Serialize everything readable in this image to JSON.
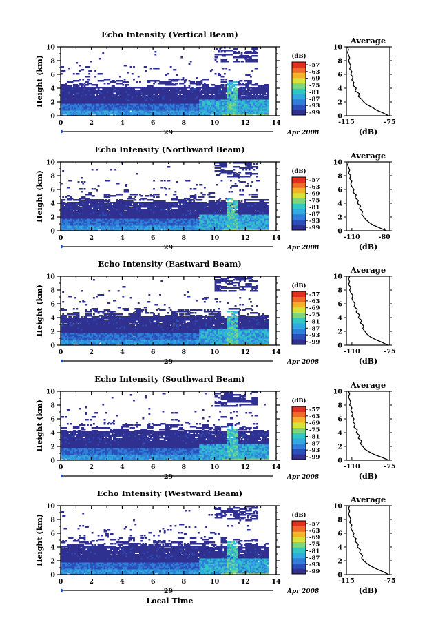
{
  "chart_data": [
    {
      "type": "heatmap",
      "title": "Echo Intensity (Vertical Beam)",
      "ylabel": "Height (km)",
      "xticks": [
        "0",
        "2",
        "4",
        "6",
        "8",
        "10",
        "12",
        "14"
      ],
      "yticks": [
        "0",
        "2",
        "4",
        "6",
        "8",
        "10"
      ],
      "xlim": [
        0,
        14
      ],
      "ylim": [
        0,
        10
      ],
      "data_end_hour": 13.5,
      "date_day": "29",
      "date_label": "Apr 2008",
      "colorbar": {
        "unit": "(dB)",
        "labels": [
          "-57",
          "-63",
          "-69",
          "-75",
          "-81",
          "-87",
          "-93",
          "-99"
        ]
      },
      "average": {
        "title": "Average",
        "xlabel": "(dB)",
        "xticks": [
          "-115",
          "-75"
        ],
        "xlim": [
          -115,
          -75
        ],
        "yticks": [
          "0",
          "2",
          "4",
          "6",
          "8",
          "10"
        ],
        "ylim": [
          0,
          10
        ],
        "profile": [
          [
            0,
            -76
          ],
          [
            0.4,
            -81
          ],
          [
            0.8,
            -87
          ],
          [
            1.2,
            -91
          ],
          [
            1.6,
            -96
          ],
          [
            2.0,
            -99
          ],
          [
            2.4,
            -101
          ],
          [
            2.8,
            -104
          ],
          [
            3.2,
            -103
          ],
          [
            3.6,
            -107
          ],
          [
            4.0,
            -106
          ],
          [
            4.4,
            -109
          ],
          [
            4.8,
            -108
          ],
          [
            5.2,
            -110
          ],
          [
            5.6,
            -109
          ],
          [
            6.0,
            -111
          ],
          [
            6.4,
            -110
          ],
          [
            6.8,
            -112
          ],
          [
            7.2,
            -111
          ],
          [
            7.6,
            -112
          ],
          [
            8.0,
            -113
          ],
          [
            8.4,
            -112
          ],
          [
            8.8,
            -113
          ],
          [
            9.2,
            -114
          ],
          [
            9.6,
            -113
          ],
          [
            10,
            -114
          ]
        ]
      },
      "color": "#223399"
    },
    {
      "type": "heatmap",
      "title": "Echo Intensity (Northward Beam)",
      "ylabel": "Height (km)",
      "xticks": [
        "0",
        "2",
        "4",
        "6",
        "8",
        "10",
        "12",
        "14"
      ],
      "yticks": [
        "0",
        "2",
        "4",
        "6",
        "8",
        "10"
      ],
      "xlim": [
        0,
        14
      ],
      "ylim": [
        0,
        10
      ],
      "data_end_hour": 13.5,
      "date_day": "29",
      "date_label": "Apr 2008",
      "colorbar": {
        "unit": "(dB)",
        "labels": [
          "-57",
          "-63",
          "-69",
          "-75",
          "-81",
          "-87",
          "-93",
          "-99"
        ]
      },
      "average": {
        "title": "Average",
        "xlabel": "(dB)",
        "xticks": [
          "-110",
          "-80"
        ],
        "xlim": [
          -115,
          -75
        ],
        "yticks": [
          "0",
          "2",
          "4",
          "6",
          "8",
          "10"
        ],
        "ylim": [
          0,
          10
        ],
        "profile": [
          [
            0,
            -78
          ],
          [
            0.4,
            -84
          ],
          [
            0.8,
            -90
          ],
          [
            1.2,
            -94
          ],
          [
            1.6,
            -97
          ],
          [
            2.0,
            -99
          ],
          [
            2.4,
            -101
          ],
          [
            2.8,
            -100
          ],
          [
            3.2,
            -103
          ],
          [
            3.6,
            -102
          ],
          [
            4.0,
            -105
          ],
          [
            4.4,
            -104
          ],
          [
            4.8,
            -107
          ],
          [
            5.2,
            -106
          ],
          [
            5.6,
            -109
          ],
          [
            6.0,
            -108
          ],
          [
            6.4,
            -110
          ],
          [
            6.8,
            -111
          ],
          [
            7.2,
            -110
          ],
          [
            7.6,
            -112
          ],
          [
            8.0,
            -111
          ],
          [
            8.4,
            -113
          ],
          [
            8.8,
            -112
          ],
          [
            9.2,
            -113
          ],
          [
            9.6,
            -114
          ],
          [
            10,
            -113
          ]
        ]
      },
      "color": "#223399"
    },
    {
      "type": "heatmap",
      "title": "Echo Intensity (Eastward Beam)",
      "ylabel": "Height (km)",
      "xticks": [
        "0",
        "2",
        "4",
        "6",
        "8",
        "10",
        "12",
        "14"
      ],
      "yticks": [
        "0",
        "2",
        "4",
        "6",
        "8",
        "10"
      ],
      "xlim": [
        0,
        14
      ],
      "ylim": [
        0,
        10
      ],
      "data_end_hour": 13.5,
      "date_day": "29",
      "date_label": "Apr 2008",
      "colorbar": {
        "unit": "(dB)",
        "labels": [
          "-57",
          "-63",
          "-69",
          "-75",
          "-81",
          "-87",
          "-93",
          "-99"
        ]
      },
      "average": {
        "title": "Average",
        "xlabel": "(dB)",
        "xticks": [
          "-110",
          "-75"
        ],
        "xlim": [
          -115,
          -75
        ],
        "yticks": [
          "0",
          "2",
          "4",
          "6",
          "8",
          "10"
        ],
        "ylim": [
          0,
          10
        ],
        "profile": [
          [
            0,
            -77
          ],
          [
            0.4,
            -82
          ],
          [
            0.8,
            -88
          ],
          [
            1.2,
            -93
          ],
          [
            1.6,
            -96
          ],
          [
            2.0,
            -98
          ],
          [
            2.4,
            -100
          ],
          [
            2.8,
            -99
          ],
          [
            3.2,
            -102
          ],
          [
            3.6,
            -101
          ],
          [
            4.0,
            -104
          ],
          [
            4.4,
            -103
          ],
          [
            4.8,
            -106
          ],
          [
            5.2,
            -105
          ],
          [
            5.6,
            -108
          ],
          [
            6.0,
            -107
          ],
          [
            6.4,
            -109
          ],
          [
            6.8,
            -110
          ],
          [
            7.2,
            -109
          ],
          [
            7.6,
            -111
          ],
          [
            8.0,
            -112
          ],
          [
            8.4,
            -111
          ],
          [
            8.8,
            -113
          ],
          [
            9.2,
            -112
          ],
          [
            9.6,
            -113
          ],
          [
            10,
            -112
          ]
        ]
      },
      "color": "#223399"
    },
    {
      "type": "heatmap",
      "title": "Echo Intensity (Southward Beam)",
      "ylabel": "Height (km)",
      "xticks": [
        "0",
        "2",
        "4",
        "6",
        "8",
        "10",
        "12",
        "14"
      ],
      "yticks": [
        "0",
        "2",
        "4",
        "6",
        "8",
        "10"
      ],
      "xlim": [
        0,
        14
      ],
      "ylim": [
        0,
        10
      ],
      "data_end_hour": 13.5,
      "date_day": "29",
      "date_label": "Apr 2008",
      "colorbar": {
        "unit": "(dB)",
        "labels": [
          "-57",
          "-63",
          "-69",
          "-75",
          "-81",
          "-87",
          "-93",
          "-99"
        ]
      },
      "average": {
        "title": "Average",
        "xlabel": "(dB)",
        "xticks": [
          "-110",
          "-75"
        ],
        "xlim": [
          -115,
          -75
        ],
        "yticks": [
          "0",
          "2",
          "4",
          "6",
          "8",
          "10"
        ],
        "ylim": [
          0,
          10
        ],
        "profile": [
          [
            0,
            -76
          ],
          [
            0.4,
            -82
          ],
          [
            0.8,
            -89
          ],
          [
            1.2,
            -94
          ],
          [
            1.6,
            -98
          ],
          [
            2.0,
            -100
          ],
          [
            2.4,
            -102
          ],
          [
            2.8,
            -101
          ],
          [
            3.2,
            -104
          ],
          [
            3.6,
            -103
          ],
          [
            4.0,
            -106
          ],
          [
            4.4,
            -105
          ],
          [
            4.8,
            -108
          ],
          [
            5.2,
            -107
          ],
          [
            5.6,
            -109
          ],
          [
            6.0,
            -108
          ],
          [
            6.4,
            -110
          ],
          [
            6.8,
            -109
          ],
          [
            7.2,
            -111
          ],
          [
            7.6,
            -110
          ],
          [
            8.0,
            -112
          ],
          [
            8.4,
            -111
          ],
          [
            8.8,
            -112
          ],
          [
            9.2,
            -113
          ],
          [
            9.6,
            -112
          ],
          [
            10,
            -113
          ]
        ]
      },
      "color": "#223399"
    },
    {
      "type": "heatmap",
      "title": "Echo Intensity (Westward Beam)",
      "ylabel": "Height (km)",
      "xlabel": "Local Time",
      "xticks": [
        "0",
        "2",
        "4",
        "6",
        "8",
        "10",
        "12",
        "14"
      ],
      "yticks": [
        "0",
        "2",
        "4",
        "6",
        "8",
        "10"
      ],
      "xlim": [
        0,
        14
      ],
      "ylim": [
        0,
        10
      ],
      "data_end_hour": 13.5,
      "date_day": "29",
      "date_label": "Apr 2008",
      "colorbar": {
        "unit": "(dB)",
        "labels": [
          "-57",
          "-63",
          "-69",
          "-75",
          "-81",
          "-87",
          "-93",
          "-99"
        ]
      },
      "average": {
        "title": "Average",
        "xlabel": "(dB)",
        "xticks": [
          "-115",
          "-75"
        ],
        "xlim": [
          -115,
          -75
        ],
        "yticks": [
          "0",
          "2",
          "4",
          "6",
          "8",
          "10"
        ],
        "ylim": [
          0,
          10
        ],
        "profile": [
          [
            0,
            -76
          ],
          [
            0.4,
            -81
          ],
          [
            0.8,
            -87
          ],
          [
            1.2,
            -92
          ],
          [
            1.6,
            -96
          ],
          [
            2.0,
            -99
          ],
          [
            2.4,
            -101
          ],
          [
            2.8,
            -100
          ],
          [
            3.2,
            -103
          ],
          [
            3.6,
            -102
          ],
          [
            4.0,
            -105
          ],
          [
            4.4,
            -104
          ],
          [
            4.8,
            -107
          ],
          [
            5.2,
            -106
          ],
          [
            5.6,
            -109
          ],
          [
            6.0,
            -108
          ],
          [
            6.4,
            -110
          ],
          [
            6.8,
            -111
          ],
          [
            7.2,
            -110
          ],
          [
            7.6,
            -112
          ],
          [
            8.0,
            -111
          ],
          [
            8.4,
            -112
          ],
          [
            8.8,
            -113
          ],
          [
            9.2,
            -112
          ],
          [
            9.6,
            -113
          ],
          [
            10,
            -112
          ]
        ]
      },
      "color": "#223399"
    }
  ],
  "colormap": [
    "#303090",
    "#2b4fb8",
    "#2f7fd9",
    "#33aadf",
    "#33c7c2",
    "#7dd67a",
    "#d8e23a",
    "#f4b22b",
    "#ee6a2a",
    "#e03020"
  ]
}
